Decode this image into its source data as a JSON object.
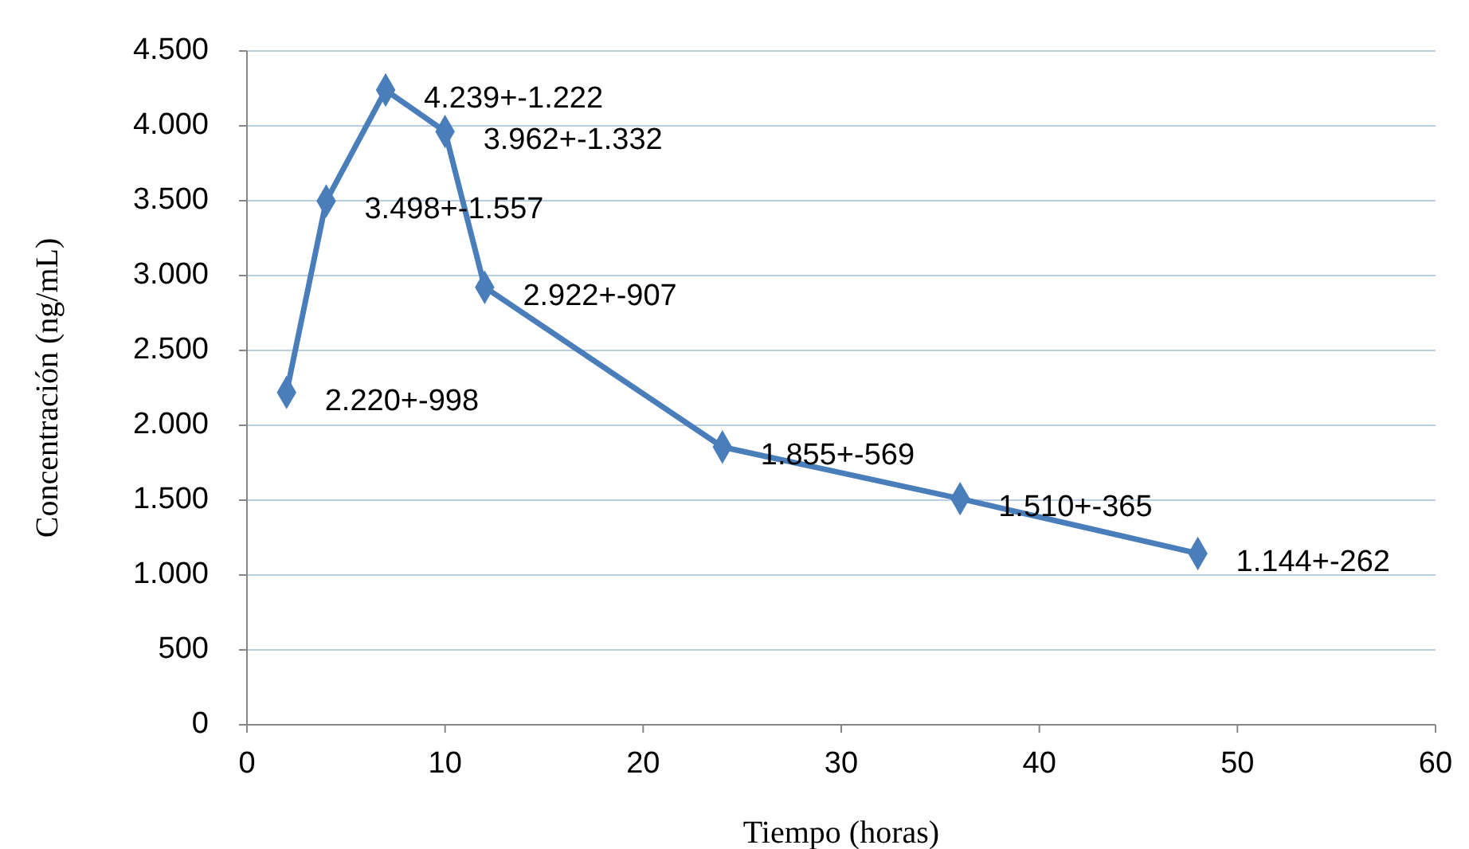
{
  "chart_data": {
    "type": "line",
    "xlabel": "Tiempo (horas)",
    "ylabel": "Concentración (ng/mL)",
    "x": [
      2,
      4,
      7,
      10,
      12,
      24,
      36,
      48
    ],
    "series": [
      {
        "color": "#4a7ebb",
        "values": [
          2220,
          3498,
          4239,
          3962,
          2922,
          1855,
          1510,
          1144
        ],
        "value_labels": [
          "2.220+-998",
          "3.498+-1.557",
          "4.239+-1.222",
          "3.962+-1.332",
          "2.922+-907",
          "1.855+-569",
          "1.510+-365",
          "1.144+-262"
        ]
      }
    ],
    "xlim": [
      0,
      60
    ],
    "xticks": [
      0,
      10,
      20,
      30,
      40,
      50,
      60
    ],
    "ylim": [
      0,
      4500
    ],
    "yticks": [
      0,
      500,
      {
        "value": 1000,
        "label": "1.000"
      },
      {
        "value": 1500,
        "label": "1.500"
      },
      {
        "value": 2000,
        "label": "2.000"
      },
      {
        "value": 2500,
        "label": "2.500"
      },
      {
        "value": 3000,
        "label": "3.000"
      },
      {
        "value": 3500,
        "label": "3.500"
      },
      {
        "value": 4000,
        "label": "4.000"
      },
      {
        "value": 4500,
        "label": "4.500"
      }
    ],
    "grid": "y",
    "marker": "diamond",
    "line_style": "solid"
  }
}
